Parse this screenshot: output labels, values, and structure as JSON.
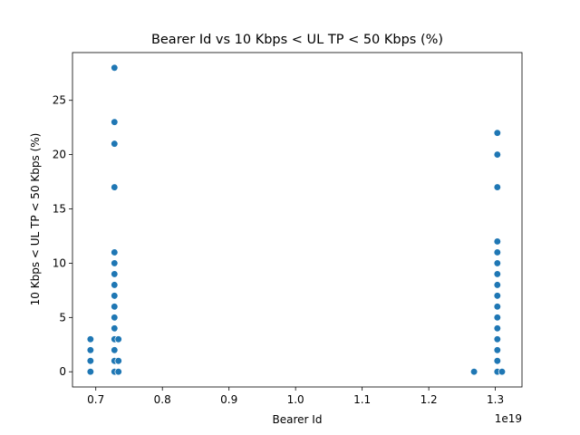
{
  "chart_data": {
    "type": "scatter",
    "title": "Bearer Id vs 10 Kbps < UL TP < 50 Kbps (%)",
    "xlabel": "Bearer Id",
    "ylabel": "10 Kbps < UL TP < 50 Kbps (%)",
    "x_offset_label": "1e19",
    "xlim": [
      0.665,
      1.34
    ],
    "ylim": [
      -1.4,
      29.4
    ],
    "xticks": [
      0.7,
      0.8,
      0.9,
      1.0,
      1.1,
      1.2,
      1.3
    ],
    "xtick_labels": [
      "0.7",
      "0.8",
      "0.9",
      "1.0",
      "1.1",
      "1.2",
      "1.3"
    ],
    "yticks": [
      0,
      5,
      10,
      15,
      20,
      25
    ],
    "ytick_labels": [
      "0",
      "5",
      "10",
      "15",
      "20",
      "25"
    ],
    "grid": false,
    "marker_color": "#1f77b4",
    "points": [
      {
        "x": 0.692,
        "y": 0
      },
      {
        "x": 0.692,
        "y": 1
      },
      {
        "x": 0.692,
        "y": 2
      },
      {
        "x": 0.692,
        "y": 3
      },
      {
        "x": 0.728,
        "y": 0
      },
      {
        "x": 0.728,
        "y": 1
      },
      {
        "x": 0.728,
        "y": 2
      },
      {
        "x": 0.728,
        "y": 3
      },
      {
        "x": 0.728,
        "y": 4
      },
      {
        "x": 0.728,
        "y": 5
      },
      {
        "x": 0.728,
        "y": 6
      },
      {
        "x": 0.728,
        "y": 7
      },
      {
        "x": 0.728,
        "y": 8
      },
      {
        "x": 0.728,
        "y": 9
      },
      {
        "x": 0.728,
        "y": 10
      },
      {
        "x": 0.728,
        "y": 11
      },
      {
        "x": 0.728,
        "y": 17
      },
      {
        "x": 0.728,
        "y": 21
      },
      {
        "x": 0.728,
        "y": 23
      },
      {
        "x": 0.728,
        "y": 28
      },
      {
        "x": 0.734,
        "y": 0
      },
      {
        "x": 0.734,
        "y": 1
      },
      {
        "x": 0.734,
        "y": 3
      },
      {
        "x": 1.268,
        "y": 0
      },
      {
        "x": 1.303,
        "y": 0
      },
      {
        "x": 1.303,
        "y": 1
      },
      {
        "x": 1.303,
        "y": 2
      },
      {
        "x": 1.303,
        "y": 3
      },
      {
        "x": 1.303,
        "y": 4
      },
      {
        "x": 1.303,
        "y": 5
      },
      {
        "x": 1.303,
        "y": 6
      },
      {
        "x": 1.303,
        "y": 7
      },
      {
        "x": 1.303,
        "y": 8
      },
      {
        "x": 1.303,
        "y": 9
      },
      {
        "x": 1.303,
        "y": 10
      },
      {
        "x": 1.303,
        "y": 11
      },
      {
        "x": 1.303,
        "y": 12
      },
      {
        "x": 1.303,
        "y": 17
      },
      {
        "x": 1.303,
        "y": 20
      },
      {
        "x": 1.303,
        "y": 22
      },
      {
        "x": 1.31,
        "y": 0
      }
    ]
  }
}
